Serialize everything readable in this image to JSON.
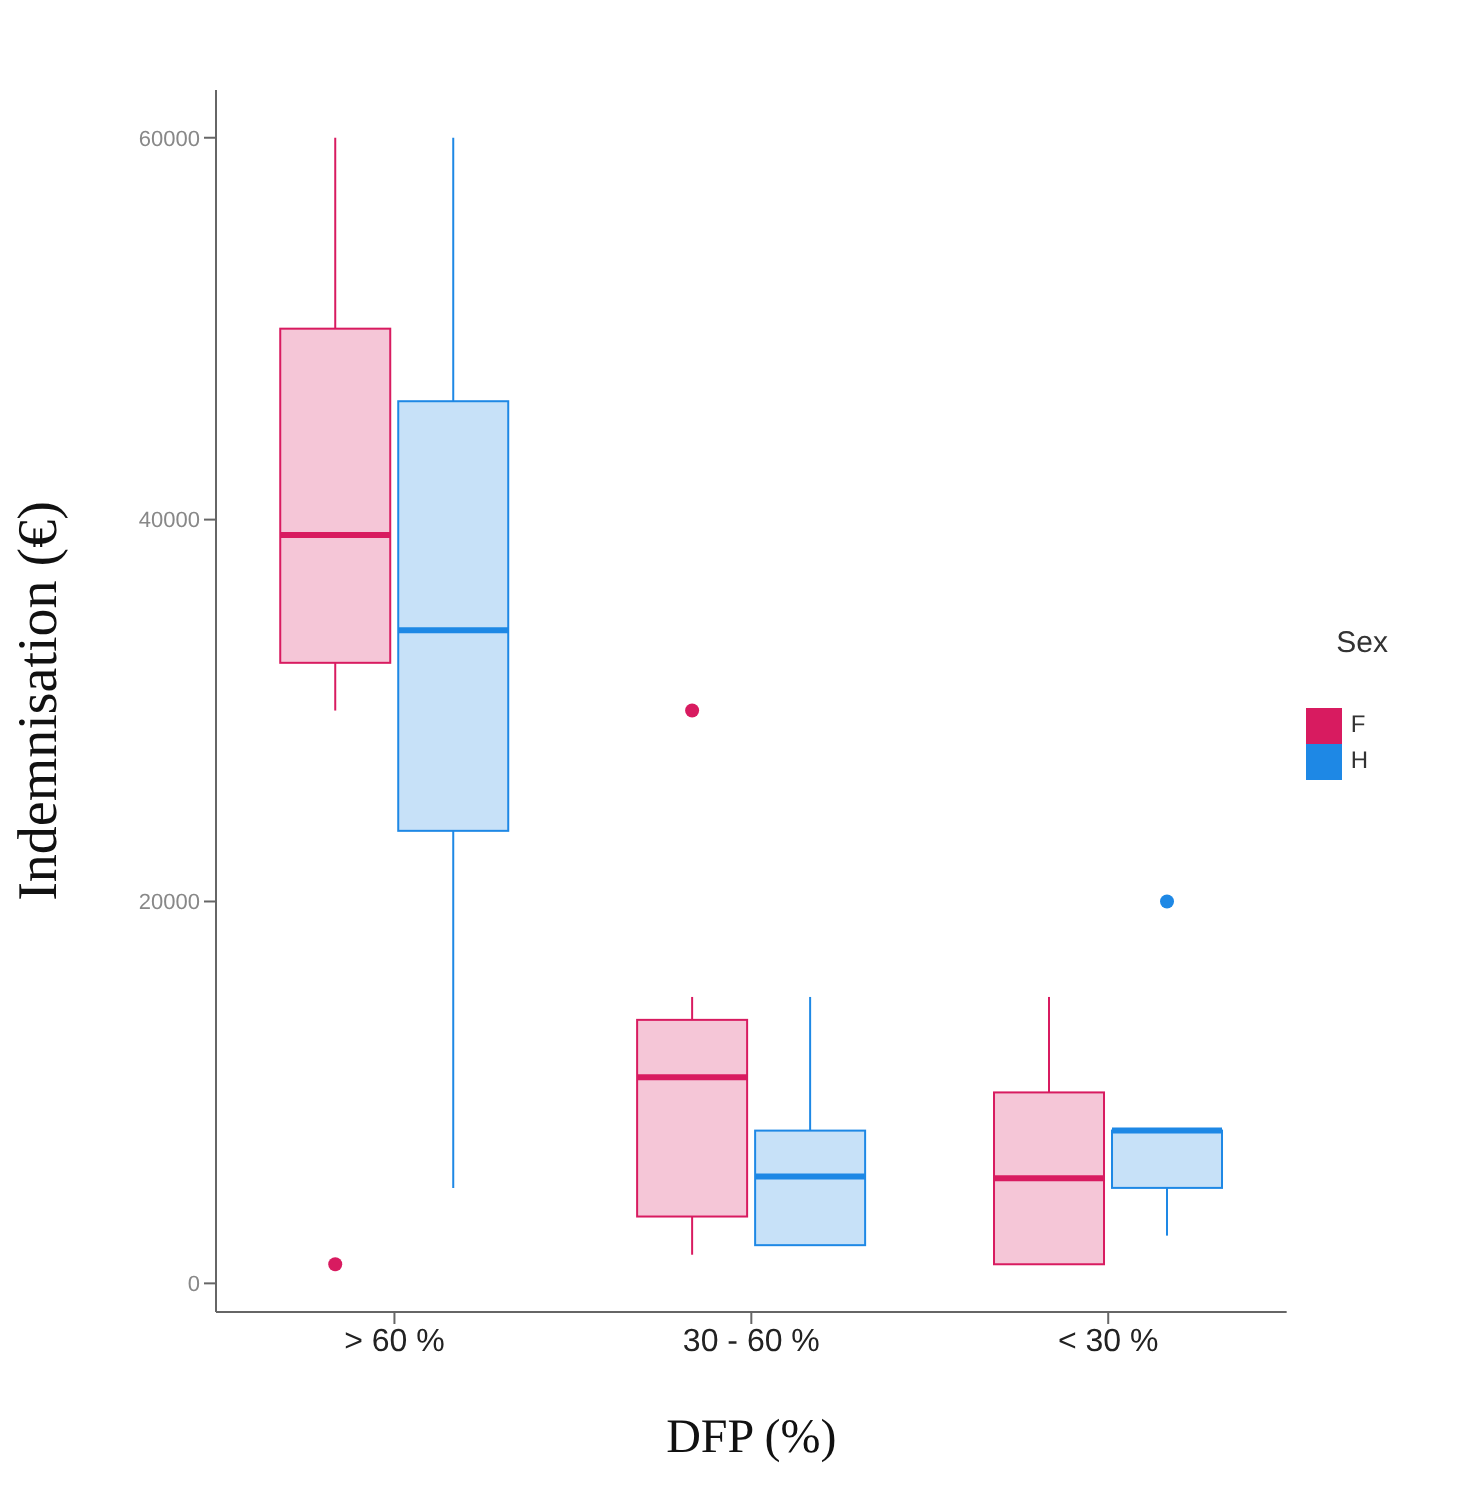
{
  "chart_data": {
    "type": "box",
    "xlabel": "DFP (%)",
    "ylabel": "Indemnisation (€)",
    "legend_title": "Sex",
    "legend": "right",
    "categories": [
      "> 60 %",
      "30 - 60 %",
      "< 30 %"
    ],
    "ylim": [
      -1500,
      62500
    ],
    "yticks": [
      0,
      20000,
      40000,
      60000
    ],
    "series": [
      {
        "name": "F",
        "color": "#d81b60",
        "boxes": [
          {
            "low": 30000,
            "q1": 32500,
            "median": 39200,
            "q3": 50000,
            "high": 60000,
            "outliers": [
              1000
            ]
          },
          {
            "low": 1500,
            "q1": 3500,
            "median": 10800,
            "q3": 13800,
            "high": 15000,
            "outliers": [
              30000
            ]
          },
          {
            "low": 1000,
            "q1": 1000,
            "median": 5500,
            "q3": 10000,
            "high": 15000
          }
        ]
      },
      {
        "name": "H",
        "color": "#1e88e5",
        "boxes": [
          {
            "low": 5000,
            "q1": 23700,
            "median": 34200,
            "q3": 46200,
            "high": 60000
          },
          {
            "low": 2000,
            "q1": 2000,
            "median": 5600,
            "q3": 8000,
            "high": 15000
          },
          {
            "low": 2500,
            "q1": 5000,
            "median": 8000,
            "q3": 8000,
            "high": 8000,
            "outliers": [
              20000
            ]
          }
        ]
      }
    ]
  }
}
